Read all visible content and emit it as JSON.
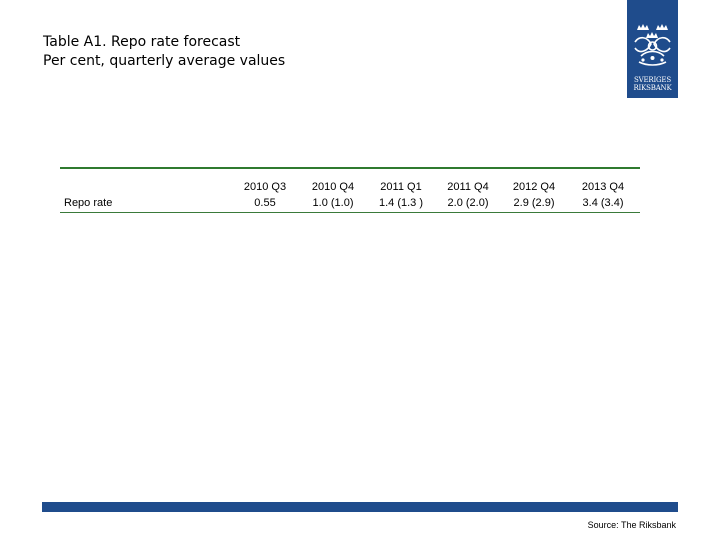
{
  "title": {
    "line1": "Table A1. Repo rate forecast",
    "line2": "Per cent, quarterly average values"
  },
  "logo": {
    "icon": "riksbank-crest-icon",
    "line1": "SVERIGES",
    "line2": "RIKSBANK",
    "color": "#1f4c8c"
  },
  "table": {
    "columns": [
      "2010 Q3",
      "2010 Q4",
      "2011 Q1",
      "2011 Q4",
      "2012 Q4",
      "2013 Q4"
    ],
    "rows": [
      {
        "label": "Repo rate",
        "values": [
          "0.55",
          "1.0 (1.0)",
          "1.4 (1.3 )",
          "2.0 (2.0)",
          "2.9 (2.9)",
          "3.4 (3.4)"
        ]
      }
    ],
    "rule_color": "#2f7a2f"
  },
  "footer": {
    "source": "Source: The Riksbank",
    "bar_color": "#1f4c8c"
  }
}
